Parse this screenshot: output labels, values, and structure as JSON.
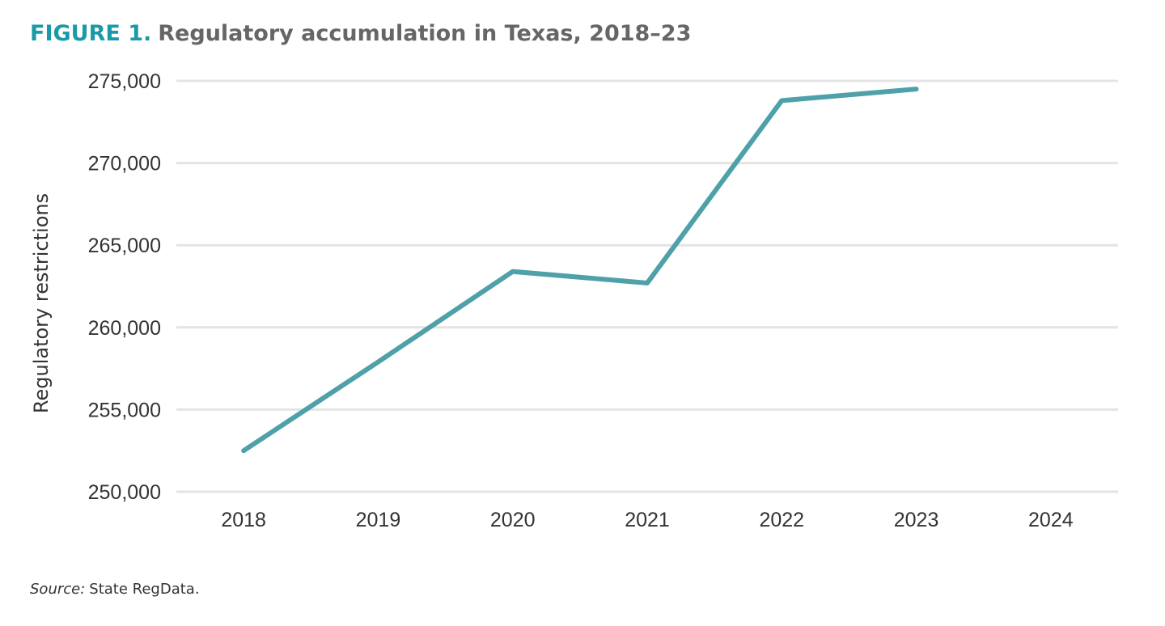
{
  "chart_data": {
    "type": "line",
    "figure_label": "FIGURE 1.",
    "title": "Regulatory accumulation in Texas, 2018–23",
    "y_label": "Regulatory restrictions",
    "categories": [
      "2018",
      "2019",
      "2020",
      "2021",
      "2022",
      "2023",
      "2024"
    ],
    "series": [
      {
        "name": "Texas",
        "color": "#4fa1a9",
        "values": [
          252500,
          257900,
          263400,
          262700,
          273800,
          274500,
          null
        ]
      }
    ],
    "ylim": [
      250000,
      275000
    ],
    "yticks": [
      {
        "value": 250000,
        "label": "250,000"
      },
      {
        "value": 255000,
        "label": "255,000"
      },
      {
        "value": 260000,
        "label": "260,000"
      },
      {
        "value": 265000,
        "label": "265,000"
      },
      {
        "value": 270000,
        "label": "270,000"
      },
      {
        "value": 275000,
        "label": "275,000"
      }
    ],
    "grid": true,
    "source_label": "Source:",
    "source_text": "State RegData."
  }
}
